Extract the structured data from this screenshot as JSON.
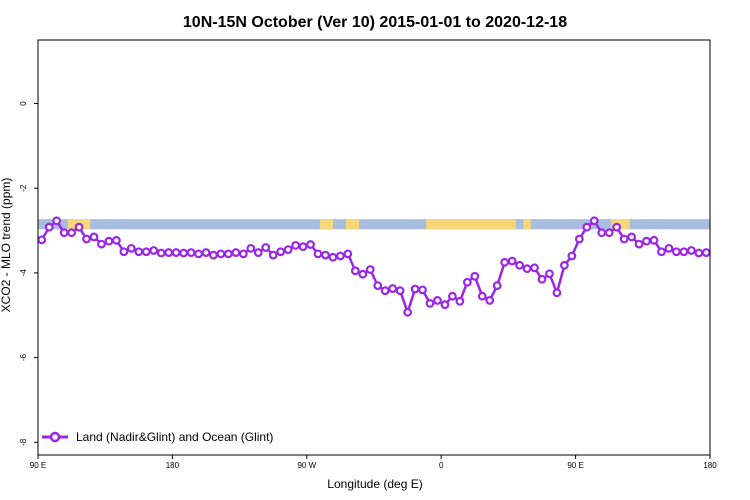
{
  "chart_data": {
    "type": "line",
    "title": "10N-15N October (Ver 10)   2015-01-01 to 2020-12-18",
    "xlabel": "Longitude (deg E)",
    "ylabel": "XCO2 - MLO trend (ppm)",
    "xlim": [
      90,
      450
    ],
    "ylim": [
      -8.3,
      1.5
    ],
    "x_ticks": [
      {
        "value": 90,
        "label": "90 E"
      },
      {
        "value": 162,
        "label": "180"
      },
      {
        "value": 234,
        "label": "90 W"
      },
      {
        "value": 306,
        "label": "0"
      },
      {
        "value": 378,
        "label": "90 E"
      },
      {
        "value": 450,
        "label": "180"
      }
    ],
    "y_ticks": [
      {
        "value": 0,
        "label": "0"
      },
      {
        "value": -2,
        "label": "-2"
      },
      {
        "value": -4,
        "label": "-4"
      },
      {
        "value": -6,
        "label": "-6"
      },
      {
        "value": -8,
        "label": "-8"
      }
    ],
    "grid": false,
    "legend_position": "bottom-left",
    "land_band": {
      "y_range": [
        -2.73,
        -2.97
      ],
      "ocean_color": "#a9bde0",
      "land_color": "#f6d77a",
      "land_segments": [
        [
          106,
          118
        ],
        [
          241,
          248
        ],
        [
          255,
          262
        ],
        [
          298,
          346
        ],
        [
          350,
          354
        ],
        [
          397,
          407
        ]
      ]
    },
    "series": [
      {
        "name": "Land (Nadir&Glint) and Ocean (Glint)",
        "color": "#9b27e6",
        "x": [
          92,
          96,
          100,
          104,
          108,
          112,
          116,
          120,
          124,
          128,
          132,
          136,
          140,
          144,
          148,
          152,
          156,
          160,
          164,
          168,
          172,
          176,
          180,
          184,
          188,
          192,
          196,
          200,
          204,
          208,
          212,
          216,
          220,
          224,
          228,
          232,
          236,
          240,
          244,
          248,
          252,
          256,
          260,
          264,
          268,
          272,
          276,
          280,
          284,
          288,
          292,
          296,
          300,
          304,
          308,
          312,
          316,
          320,
          324,
          328,
          332,
          336,
          340,
          344,
          348,
          352,
          356,
          360,
          364,
          368,
          372,
          376,
          380,
          384,
          388,
          392,
          396,
          400,
          404,
          408,
          412,
          416,
          420,
          424,
          428,
          432,
          436,
          440,
          444,
          448
        ],
        "values": [
          -3.22,
          -2.92,
          -2.77,
          -3.05,
          -3.05,
          -2.92,
          -3.2,
          -3.15,
          -3.32,
          -3.25,
          -3.23,
          -3.5,
          -3.42,
          -3.5,
          -3.5,
          -3.47,
          -3.53,
          -3.52,
          -3.52,
          -3.53,
          -3.52,
          -3.55,
          -3.52,
          -3.58,
          -3.55,
          -3.55,
          -3.52,
          -3.55,
          -3.42,
          -3.52,
          -3.4,
          -3.58,
          -3.5,
          -3.45,
          -3.35,
          -3.38,
          -3.33,
          -3.55,
          -3.58,
          -3.63,
          -3.6,
          -3.55,
          -3.95,
          -4.03,
          -3.92,
          -4.3,
          -4.42,
          -4.37,
          -4.42,
          -4.93,
          -4.38,
          -4.4,
          -4.72,
          -4.65,
          -4.75,
          -4.55,
          -4.67,
          -4.22,
          -4.08,
          -4.55,
          -4.65,
          -4.3,
          -3.75,
          -3.72,
          -3.82,
          -3.9,
          -3.88,
          -4.15,
          -4.02,
          -4.47,
          -3.82,
          -3.6,
          -3.2,
          -2.92,
          -2.77,
          -3.05,
          -3.05,
          -2.92,
          -3.2,
          -3.15,
          -3.32,
          -3.25,
          -3.23,
          -3.5,
          -3.42,
          -3.5,
          -3.5,
          -3.47,
          -3.53,
          -3.52
        ]
      }
    ]
  }
}
